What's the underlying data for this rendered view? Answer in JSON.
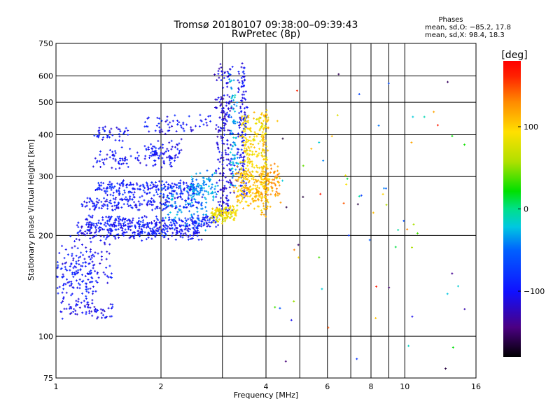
{
  "chart_data": {
    "type": "scatter",
    "title": "Tromsø 20180107 09:38:00–09:39:43",
    "subtitle": "RwPretec (8p)",
    "xlabel": "Frequency [MHz]",
    "ylabel": "Stationary phase Virtual Height [km]",
    "x_scale": "log2",
    "y_scale": "log",
    "xlim": [
      1,
      16
    ],
    "ylim": [
      75,
      750
    ],
    "x_ticks": [
      {
        "v": 1,
        "label": "1"
      },
      {
        "v": 2,
        "label": "2"
      },
      {
        "v": 3,
        "label": ""
      },
      {
        "v": 4,
        "label": "4"
      },
      {
        "v": 5,
        "label": ""
      },
      {
        "v": 6,
        "label": "6"
      },
      {
        "v": 7,
        "label": ""
      },
      {
        "v": 8,
        "label": "8"
      },
      {
        "v": 9,
        "label": ""
      },
      {
        "v": 10,
        "label": "10"
      },
      {
        "v": 16,
        "label": "16"
      }
    ],
    "y_ticks": [
      {
        "v": 75,
        "label": "75"
      },
      {
        "v": 100,
        "label": "100"
      },
      {
        "v": 200,
        "label": "200"
      },
      {
        "v": 300,
        "label": "300"
      },
      {
        "v": 400,
        "label": "400"
      },
      {
        "v": 500,
        "label": "500"
      },
      {
        "v": 600,
        "label": "600"
      },
      {
        "v": 750,
        "label": "750"
      }
    ],
    "grid": true,
    "phase_stats": {
      "heading": "Phases",
      "line_o": "mean, sd,O: −85.2, 17.8",
      "line_x": "mean, sd,X:  98.4, 18.3"
    },
    "colorbar": {
      "label": "[deg]",
      "range": [
        -180,
        180
      ],
      "ticks": [
        {
          "v": 100,
          "label": "100"
        },
        {
          "v": 0,
          "label": "0"
        },
        {
          "v": -100,
          "label": "−100"
        }
      ]
    },
    "traces": [
      {
        "name": "lowE_bottom",
        "x0": 1.02,
        "x1": 1.45,
        "y0": 114,
        "y1": 125,
        "phase": -105,
        "n": 70,
        "jitter": 0.03
      },
      {
        "name": "lowE_band1",
        "x0": 1.0,
        "x1": 1.3,
        "y0": 130,
        "y1": 175,
        "phase": -95,
        "n": 110,
        "jitter": 0.05
      },
      {
        "name": "lowE_band2",
        "x0": 1.05,
        "x1": 1.45,
        "y0": 145,
        "y1": 200,
        "phase": -100,
        "n": 90,
        "jitter": 0.05
      },
      {
        "name": "F_band_200",
        "x0": 1.15,
        "x1": 2.6,
        "y0": 200,
        "y1": 212,
        "phase": -100,
        "n": 260,
        "jitter": 0.04
      },
      {
        "name": "F_band_220",
        "x0": 1.2,
        "x1": 2.9,
        "y0": 218,
        "y1": 222,
        "phase": -95,
        "n": 220,
        "jitter": 0.035
      },
      {
        "name": "F_band_250",
        "x0": 1.2,
        "x1": 2.6,
        "y0": 245,
        "y1": 255,
        "phase": -98,
        "n": 180,
        "jitter": 0.04
      },
      {
        "name": "F_band_275",
        "x0": 1.3,
        "x1": 2.5,
        "y0": 270,
        "y1": 285,
        "phase": -92,
        "n": 200,
        "jitter": 0.035
      },
      {
        "name": "F_band_340",
        "x0": 1.3,
        "x1": 2.2,
        "y0": 330,
        "y1": 350,
        "phase": -100,
        "n": 90,
        "jitter": 0.05
      },
      {
        "name": "F_band_400",
        "x0": 1.3,
        "x1": 1.6,
        "y0": 395,
        "y1": 410,
        "phase": -100,
        "n": 40,
        "jitter": 0.04
      },
      {
        "name": "F_band_420",
        "x0": 1.8,
        "x1": 2.8,
        "y0": 410,
        "y1": 450,
        "phase": -100,
        "n": 60,
        "jitter": 0.04
      },
      {
        "name": "F_band_370",
        "x0": 1.8,
        "x1": 2.3,
        "y0": 345,
        "y1": 375,
        "phase": -98,
        "n": 60,
        "jitter": 0.04
      },
      {
        "name": "cyan_cusp",
        "x0": 2.4,
        "x1": 2.9,
        "y0": 300,
        "y1": 260,
        "phase": -35,
        "n": 90,
        "jitter": 0.05
      },
      {
        "name": "cyan_fill",
        "x0": 2.0,
        "x1": 2.7,
        "y0": 210,
        "y1": 275,
        "phase": -40,
        "n": 90,
        "jitter": 0.06
      },
      {
        "name": "blue_spike_3",
        "x0": 2.9,
        "x1": 3.2,
        "y0": 230,
        "y1": 640,
        "phase": -110,
        "n": 220,
        "jitter": 0.04
      },
      {
        "name": "blue_spike_35",
        "x0": 3.35,
        "x1": 3.5,
        "y0": 260,
        "y1": 640,
        "phase": -100,
        "n": 140,
        "jitter": 0.03
      },
      {
        "name": "cyan_spike",
        "x0": 3.15,
        "x1": 3.3,
        "y0": 280,
        "y1": 600,
        "phase": -30,
        "n": 70,
        "jitter": 0.03
      },
      {
        "name": "X_yellow_low",
        "x0": 2.8,
        "x1": 3.3,
        "y0": 225,
        "y1": 240,
        "phase": 88,
        "n": 120,
        "jitter": 0.04
      },
      {
        "name": "X_orange_block",
        "x0": 3.3,
        "x1": 4.1,
        "y0": 250,
        "y1": 310,
        "phase": 110,
        "n": 220,
        "jitter": 0.05
      },
      {
        "name": "X_yellow_upper",
        "x0": 3.4,
        "x1": 4.0,
        "y0": 300,
        "y1": 460,
        "phase": 95,
        "n": 180,
        "jitter": 0.04
      },
      {
        "name": "X_orange_tail",
        "x0": 4.0,
        "x1": 4.4,
        "y0": 255,
        "y1": 320,
        "phase": 125,
        "n": 50,
        "jitter": 0.04
      },
      {
        "name": "X_spike_4",
        "x0": 3.9,
        "x1": 4.05,
        "y0": 230,
        "y1": 480,
        "phase": 105,
        "n": 70,
        "jitter": 0.02
      },
      {
        "name": "noise",
        "x0": 4.2,
        "x1": 15,
        "y0": 80,
        "y1": 620,
        "phase": 0,
        "n": 70,
        "jitter": 0,
        "random": true
      }
    ]
  }
}
